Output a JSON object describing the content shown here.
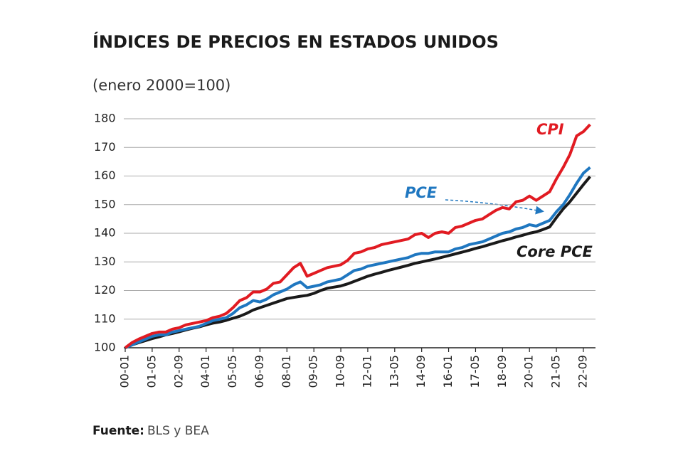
{
  "chart_data": {
    "type": "line",
    "title": "ÍNDICES DE PRECIOS EN ESTADOS UNIDOS",
    "subtitle": "(enero 2000=100)",
    "source_label": "Fuente:",
    "source_text": "BLS y BEA",
    "categories": [
      "00-01",
      null,
      null,
      null,
      "01-05",
      null,
      null,
      null,
      "02-09",
      null,
      null,
      null,
      "04-01",
      null,
      null,
      null,
      "05-05",
      null,
      null,
      null,
      "06-09",
      null,
      null,
      null,
      "08-01",
      null,
      null,
      null,
      "09-05",
      null,
      null,
      null,
      "10-09",
      null,
      null,
      null,
      "12-01",
      null,
      null,
      null,
      "13-05",
      null,
      null,
      null,
      "14-09",
      null,
      null,
      null,
      "16-01",
      null,
      null,
      null,
      "17-05",
      null,
      null,
      null,
      "18-09",
      null,
      null,
      null,
      "20-01",
      null,
      null,
      null,
      "21-05",
      null,
      null,
      null,
      "22-09",
      null
    ],
    "series": [
      {
        "name": "CPI",
        "color": "#e11b22",
        "values": [
          100,
          101.8,
          103,
          104,
          105,
          105.5,
          105.5,
          106.5,
          107,
          108,
          108.5,
          109,
          109.5,
          110.5,
          111,
          112,
          114,
          116.5,
          117.5,
          119.5,
          119.5,
          120.5,
          122.5,
          123,
          125.5,
          128,
          129.5,
          125,
          126,
          127,
          128,
          128.5,
          129,
          130.5,
          133,
          133.5,
          134.5,
          135,
          136,
          136.5,
          137,
          137.5,
          138,
          139.5,
          140,
          138.5,
          140,
          140.5,
          140,
          142,
          142.5,
          143.5,
          144.5,
          145,
          146.5,
          148,
          149,
          148.5,
          151,
          151.5,
          153,
          151.5,
          153,
          154.5,
          159,
          163,
          167.5,
          174,
          175.5,
          178
        ]
      },
      {
        "name": "PCE",
        "color": "#1f77c0",
        "values": [
          100,
          101,
          102,
          103,
          104,
          104.5,
          104.5,
          105.5,
          106,
          106.5,
          107,
          107.5,
          108.5,
          109.5,
          110,
          110.5,
          112,
          114,
          115,
          116.5,
          116,
          117,
          118.5,
          119.5,
          120.5,
          122,
          123,
          121,
          121.5,
          122,
          123,
          123.5,
          124,
          125.5,
          127,
          127.5,
          128.5,
          129,
          129.5,
          130,
          130.5,
          131,
          131.5,
          132.5,
          133,
          133,
          133.5,
          133.5,
          133.5,
          134.5,
          135,
          136,
          136.5,
          137,
          138,
          139,
          140,
          140.5,
          141.5,
          142,
          143,
          142.5,
          143.5,
          144.5,
          147.5,
          150,
          153.5,
          157.5,
          161,
          163
        ]
      },
      {
        "name": "Core PCE",
        "color": "#1a1a1a",
        "values": [
          100,
          101,
          101.8,
          102.5,
          103.2,
          103.8,
          104.5,
          105,
          105.6,
          106.2,
          106.8,
          107.3,
          108,
          108.6,
          109,
          109.6,
          110.3,
          111,
          112,
          113.2,
          114,
          114.8,
          115.6,
          116.4,
          117.2,
          117.6,
          118,
          118.3,
          119,
          120,
          120.8,
          121.2,
          121.6,
          122.3,
          123.2,
          124.1,
          125,
          125.7,
          126.3,
          127,
          127.6,
          128.2,
          128.8,
          129.5,
          130,
          130.5,
          131,
          131.6,
          132.2,
          132.8,
          133.4,
          134,
          134.7,
          135.3,
          136,
          136.7,
          137.4,
          138,
          138.7,
          139.3,
          140,
          140.5,
          141.3,
          142.2,
          145.5,
          148.5,
          151,
          154,
          157,
          159.8
        ]
      }
    ],
    "ylim": [
      100,
      180
    ],
    "yticks": [
      100,
      110,
      120,
      130,
      140,
      150,
      160,
      170,
      180
    ],
    "grid": true
  }
}
